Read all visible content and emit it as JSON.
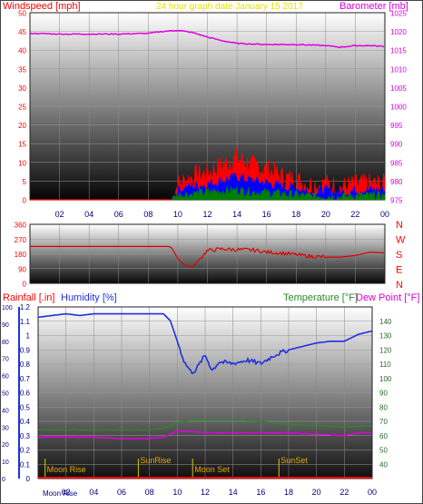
{
  "header": {
    "windspeed_label": "Windspeed [mph]",
    "graph_date": "24 hour graph date   January 15 2017",
    "barometer_label": "Barometer [mb]"
  },
  "colors": {
    "wind_red": "#ff0000",
    "wind_blue": "#0000ff",
    "wind_green": "#008000",
    "barometer": "#e000e0",
    "direction": "#e00000",
    "humidity": "#2030e0",
    "temperature": "#2a8a2a",
    "dewpoint": "#e000e0",
    "rainfall": "#ff0000",
    "date_label": "#e8e000",
    "moon_label": "#e8a800",
    "sun_label": "#d8c800"
  },
  "chart_data": [
    {
      "type": "line",
      "panel": "wind-barometer",
      "x_ticks": [
        "02",
        "04",
        "06",
        "08",
        "10",
        "12",
        "14",
        "16",
        "18",
        "20",
        "22",
        "00"
      ],
      "left_axis": {
        "label": "Windspeed [mph]",
        "range": [
          0,
          50
        ],
        "ticks": [
          "0",
          "5",
          "10",
          "15",
          "20",
          "25",
          "30",
          "35",
          "40",
          "45",
          "50"
        ]
      },
      "right_axis": {
        "label": "Barometer [mb]",
        "range": [
          975,
          1025
        ],
        "ticks": [
          "975",
          "980",
          "985",
          "990",
          "995",
          "1000",
          "1005",
          "1010",
          "1015",
          "1020",
          "1025"
        ]
      },
      "series": [
        {
          "name": "Barometer [mb]",
          "axis": "right",
          "x": [
            0,
            2,
            4,
            6,
            8,
            9,
            10,
            11,
            12,
            13,
            14,
            16,
            18,
            20,
            21,
            22,
            23,
            24
          ],
          "y": [
            1019.5,
            1019.3,
            1019.3,
            1019.3,
            1019.5,
            1020,
            1020.3,
            1019.7,
            1018.5,
            1017.5,
            1016.8,
            1016.5,
            1016.5,
            1016.2,
            1015.8,
            1016.2,
            1016.2,
            1016.0
          ]
        },
        {
          "name": "gust",
          "axis": "left",
          "x": [
            0,
            9.6,
            10,
            11,
            12,
            13,
            14,
            15,
            16,
            17,
            18,
            19,
            20,
            21,
            22,
            23,
            24
          ],
          "y": [
            0,
            0,
            4,
            6,
            7,
            9,
            11,
            9,
            8,
            6,
            5,
            4,
            4,
            3,
            4,
            4,
            4
          ]
        },
        {
          "name": "average",
          "axis": "left",
          "x": [
            0,
            9.6,
            10,
            11,
            12,
            13,
            14,
            15,
            16,
            17,
            18,
            19,
            20,
            21,
            22,
            23,
            24
          ],
          "y": [
            0,
            0,
            2.5,
            3.5,
            4,
            5,
            6,
            5,
            4.5,
            3.5,
            3,
            2,
            2.5,
            1.8,
            2.5,
            2.5,
            2.5
          ]
        },
        {
          "name": "low",
          "axis": "left",
          "x": [
            0,
            9.6,
            10,
            11,
            12,
            13,
            14,
            15,
            16,
            17,
            18,
            19,
            20,
            21,
            22,
            23,
            24
          ],
          "y": [
            0,
            0,
            1.2,
            1.5,
            2,
            2.2,
            2.5,
            2,
            1.8,
            1.5,
            1.2,
            0.8,
            1,
            0.6,
            1,
            1,
            1
          ]
        }
      ]
    },
    {
      "type": "line",
      "panel": "wind-direction",
      "x_ticks": [
        "02",
        "04",
        "06",
        "08",
        "10",
        "12",
        "14",
        "16",
        "18",
        "20",
        "22",
        "00"
      ],
      "left_axis": {
        "range": [
          0,
          360
        ],
        "ticks": [
          "0",
          "90",
          "180",
          "270",
          "360"
        ]
      },
      "right_labels": [
        "N",
        "W",
        "S",
        "E",
        "N"
      ],
      "series": [
        {
          "name": "direction",
          "x": [
            0,
            2,
            4,
            6,
            8,
            9.4,
            9.6,
            10,
            10.5,
            11,
            11.5,
            12,
            13,
            14,
            15,
            16,
            17,
            18,
            19,
            20,
            21,
            22,
            23,
            24
          ],
          "y": [
            225,
            225,
            225,
            225,
            225,
            225,
            215,
            150,
            110,
            100,
            150,
            200,
            210,
            205,
            205,
            190,
            185,
            175,
            165,
            160,
            160,
            170,
            190,
            185
          ]
        }
      ]
    },
    {
      "type": "line",
      "panel": "rain-humidity-temperature",
      "x_ticks": [
        "02",
        "04",
        "06",
        "08",
        "10",
        "12",
        "14",
        "16",
        "18",
        "20",
        "22",
        "00"
      ],
      "left_axis": {
        "label": "Rainfall [.in]",
        "range": [
          0,
          1.2
        ],
        "ticks": [
          "0",
          "0.1",
          "0.2",
          "0.3",
          "0.4",
          "0.5",
          "0.6",
          "0.7",
          "0.8",
          "0.9",
          "1",
          "1.1",
          "1.2"
        ]
      },
      "humidity_axis": {
        "label": "Humidity [%]",
        "range": [
          0,
          100
        ],
        "ticks": [
          "0",
          "10",
          "20",
          "30",
          "40",
          "50",
          "60",
          "70",
          "80",
          "90",
          "100"
        ]
      },
      "right_axis": {
        "label": "Temperature [°F]",
        "range": [
          30,
          150
        ],
        "ticks": [
          "40",
          "50",
          "60",
          "70",
          "80",
          "90",
          "100",
          "110",
          "120",
          "130",
          "140"
        ]
      },
      "dewpoint_label": "Dew Point [°F]",
      "series": [
        {
          "name": "Humidity [%]",
          "axis": "humidity",
          "x": [
            0,
            2,
            3,
            4,
            6,
            8,
            9,
            9.5,
            10,
            10.5,
            11,
            11.3,
            12,
            12.5,
            13,
            14,
            15,
            16,
            17,
            18,
            19,
            20,
            21,
            22,
            23,
            24
          ],
          "y": [
            94,
            96,
            95,
            96,
            96,
            96,
            96,
            92,
            80,
            68,
            62,
            63,
            72,
            63,
            68,
            67,
            69,
            67,
            72,
            75,
            77,
            79,
            80,
            80,
            84,
            86
          ]
        },
        {
          "name": "Temperature [°F]",
          "axis": "right",
          "x": [
            0,
            2,
            4,
            6,
            8,
            9,
            10,
            11,
            12,
            14,
            16,
            18,
            20,
            22,
            24
          ],
          "y": [
            64,
            64,
            64,
            64,
            64,
            65,
            69,
            71,
            71,
            71,
            70,
            68,
            67,
            66,
            67
          ]
        },
        {
          "name": "Dew Point [°F]",
          "axis": "right",
          "x": [
            0,
            2,
            4,
            6,
            8,
            9,
            10,
            11,
            12,
            14,
            16,
            18,
            20,
            22,
            23,
            24
          ],
          "y": [
            59,
            59,
            59,
            58,
            58,
            59,
            63,
            63,
            62,
            62,
            62,
            62,
            61,
            60,
            62,
            62
          ]
        },
        {
          "name": "Rainfall [.in]",
          "axis": "left",
          "x": [
            0,
            24
          ],
          "y": [
            0,
            0
          ]
        }
      ],
      "markers": [
        {
          "label": "Moon Rise",
          "hour": 0.5
        },
        {
          "label": "SunRise",
          "hour": 7.2
        },
        {
          "label": "Moon Set",
          "hour": 11.1
        },
        {
          "label": "SunSet",
          "hour": 17.3
        }
      ],
      "bottom_moon_label": "Moon Rise"
    }
  ]
}
